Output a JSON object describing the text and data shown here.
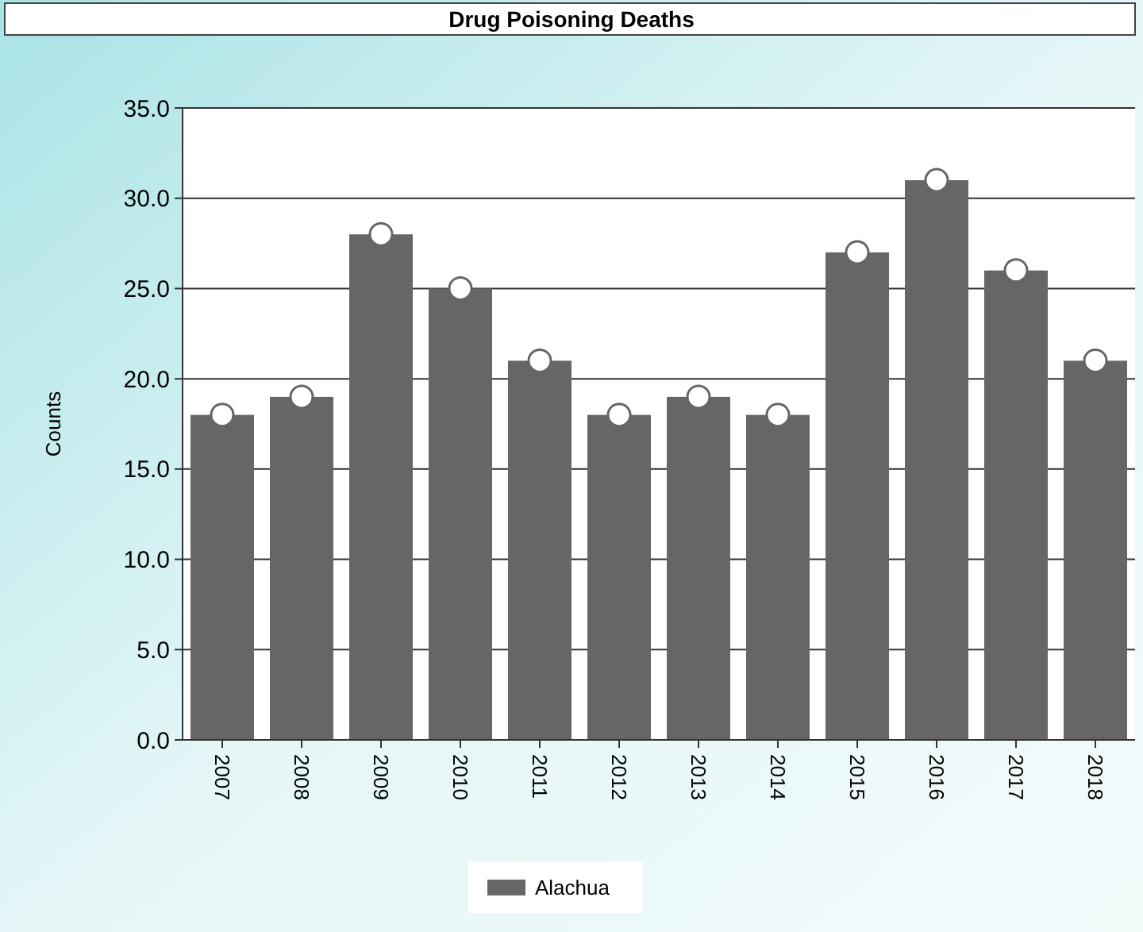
{
  "chart_data": {
    "type": "bar",
    "title": "Drug Poisoning Deaths",
    "ylabel": "Counts",
    "categories": [
      "2007",
      "2008",
      "2009",
      "2010",
      "2011",
      "2012",
      "2013",
      "2014",
      "2015",
      "2016",
      "2017",
      "2018"
    ],
    "series": [
      {
        "name": "Alachua",
        "color": "#666666",
        "values": [
          18,
          19,
          28,
          25,
          21,
          18,
          19,
          18,
          27,
          31,
          26,
          21
        ]
      },
      {
        "type": "scatter",
        "color": "#ffffff",
        "values": [
          18,
          19,
          28,
          25,
          21,
          18,
          19,
          18,
          27,
          31,
          26,
          21
        ]
      }
    ],
    "ylim": [
      0,
      35
    ],
    "yticks": [
      {
        "value": 0,
        "label": "0.0"
      },
      {
        "value": 5,
        "label": "5.0"
      },
      {
        "value": 10,
        "label": "10.0"
      },
      {
        "value": 15,
        "label": "15.0"
      },
      {
        "value": 20,
        "label": "20.0"
      },
      {
        "value": 25,
        "label": "25.0"
      },
      {
        "value": 30,
        "label": "30.0"
      },
      {
        "value": 35,
        "label": "35.0"
      }
    ],
    "grid": "y",
    "legend": "bottom",
    "marker": "circle"
  }
}
